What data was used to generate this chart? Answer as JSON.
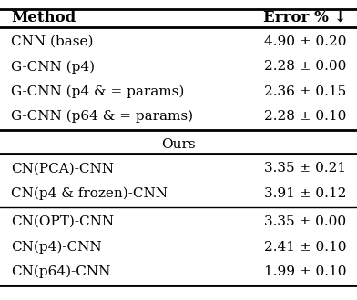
{
  "title_col1": "Method",
  "title_col2": "Error % ↓",
  "section_label": "Ours",
  "rows_top": [
    [
      "CNN (base)",
      "4.90 ± 0.20"
    ],
    [
      "G-CNN (p4)",
      "2.28 ± 0.00"
    ],
    [
      "G-CNN (p4 & = params)",
      "2.36 ± 0.15"
    ],
    [
      "G-CNN (p64 & = params)",
      "2.28 ± 0.10"
    ]
  ],
  "rows_mid": [
    [
      "CN(PCA)-CNN",
      "3.35 ± 0.21"
    ],
    [
      "CN(p4 & frozen)-CNN",
      "3.91 ± 0.12"
    ]
  ],
  "rows_bot": [
    [
      "CN(OPT)-CNN",
      "3.35 ± 0.00"
    ],
    [
      "CN(p4)-CNN",
      "2.41 ± 0.10"
    ],
    [
      "CN(p64)-CNN",
      "1.99 ± 0.10"
    ]
  ],
  "bg_color": "#ffffff",
  "text_color": "#000000",
  "font_size": 11.0,
  "header_font_size": 12.0
}
